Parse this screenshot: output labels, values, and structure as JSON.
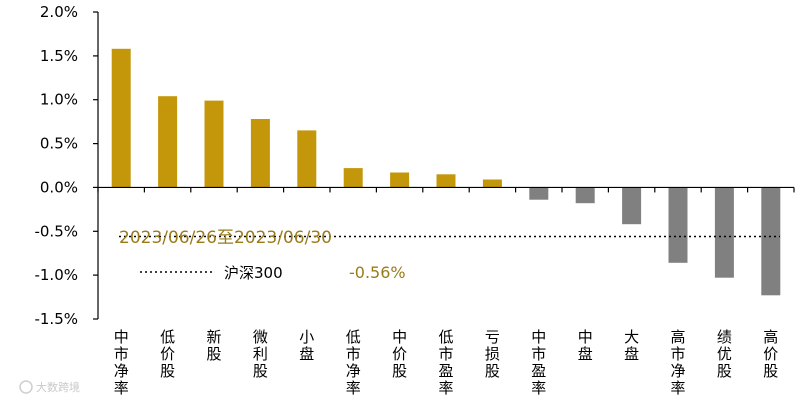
{
  "chart_data": {
    "type": "bar",
    "categories": [
      "中市净率",
      "低价股",
      "新股",
      "微利股",
      "小盘",
      "低市净率",
      "中价股",
      "低市盈率",
      "亏损股",
      "中市盈率",
      "中盘",
      "大盘",
      "高市净率",
      "绩优股",
      "高价股"
    ],
    "values": [
      1.58,
      1.04,
      0.99,
      0.78,
      0.65,
      0.22,
      0.17,
      0.15,
      0.09,
      -0.14,
      -0.18,
      -0.42,
      -0.86,
      -1.03,
      -1.23
    ],
    "y_ticks": [
      "2.0%",
      "1.5%",
      "1.0%",
      "0.5%",
      "0.0%",
      "-0.5%",
      "-1.0%",
      "-1.5%"
    ],
    "ylim": [
      -1.5,
      2.0
    ],
    "reference": {
      "name": "沪深300",
      "value": -0.56,
      "value_label": "-0.56%"
    },
    "period_label": "2023/06/26至2023/06/30",
    "grid": false,
    "colors": {
      "positive": "#c4970a",
      "negative": "#808080",
      "text_accent": "#9a7b1a",
      "axis": "#000000"
    }
  },
  "watermark": "大数跨境"
}
